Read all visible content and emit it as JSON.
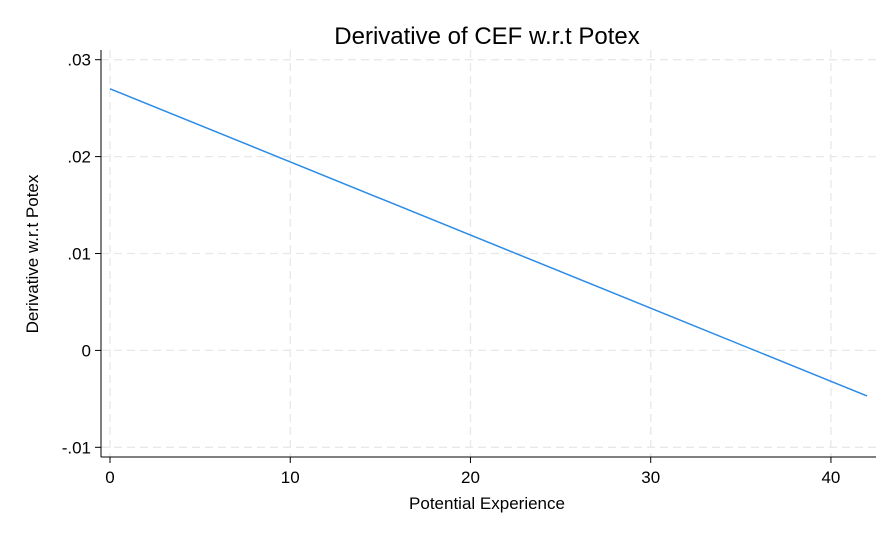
{
  "chart_data": {
    "type": "line",
    "title": "Derivative of CEF w.r.t Potex",
    "xlabel": "Potential Experience",
    "ylabel": "Derivative w.r.t Potex",
    "xlim": [
      -0.5,
      42.5
    ],
    "ylim": [
      -0.011,
      0.031
    ],
    "xticks": [
      0,
      10,
      20,
      30,
      40
    ],
    "xtick_labels": [
      "0",
      "10",
      "20",
      "30",
      "40"
    ],
    "yticks": [
      -0.01,
      0,
      0.01,
      0.02,
      0.03
    ],
    "ytick_labels": [
      "-.01",
      "0",
      ".01",
      ".02",
      ".03"
    ],
    "grid": true,
    "series": [
      {
        "color": "#2b8be6",
        "x": [
          0,
          42
        ],
        "y": [
          0.027,
          -0.0047
        ]
      }
    ]
  }
}
